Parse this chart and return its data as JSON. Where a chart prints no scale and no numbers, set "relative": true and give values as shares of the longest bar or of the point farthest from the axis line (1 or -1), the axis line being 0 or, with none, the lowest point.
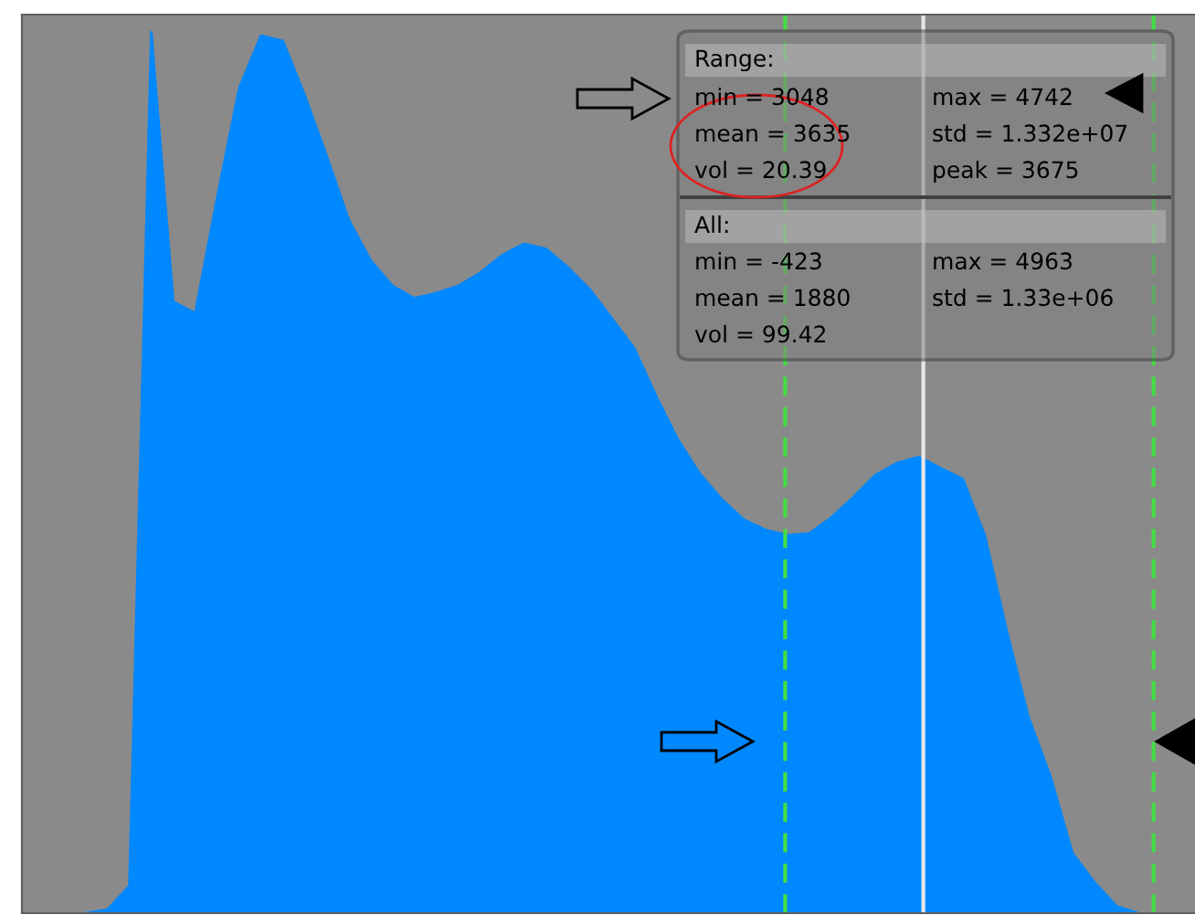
{
  "chart_data": {
    "type": "area",
    "relative": true,
    "tick_labels": false,
    "categories": [
      null,
      null,
      null,
      null,
      null,
      null,
      null,
      null,
      null,
      null,
      null,
      null,
      null,
      null,
      null,
      null,
      null,
      null,
      null,
      null,
      null,
      null,
      null,
      null,
      null,
      null,
      null,
      null,
      null,
      null,
      null,
      null,
      null,
      null,
      null,
      null,
      null,
      null,
      null,
      null,
      null,
      null,
      null,
      null,
      null,
      null,
      null,
      null,
      null
    ],
    "series": [
      {
        "color": "#0088ff",
        "values": [
          0,
          0.004,
          0.031,
          1,
          0.694,
          0.681,
          0.812,
          0.936,
          0.996,
          0.99,
          0.928,
          0.859,
          0.787,
          0.741,
          0.712,
          0.698,
          0.704,
          0.712,
          0.727,
          0.747,
          0.76,
          0.754,
          0.733,
          0.708,
          0.675,
          0.642,
          0.588,
          0.538,
          0.499,
          0.47,
          0.447,
          0.435,
          0.429,
          0.431,
          0.449,
          0.472,
          0.497,
          0.511,
          0.518,
          0.505,
          0.493,
          0.429,
          0.321,
          0.222,
          0.155,
          0.068,
          0.035,
          0.008,
          0
        ]
      }
    ],
    "annotations": [
      "Range:",
      "min = 3048",
      "max = 4742",
      "mean = 3635",
      "std = 1.332e+07",
      "vol = 20.39",
      "peak = 3675",
      "All:",
      "min = -423",
      "max = 4963",
      "mean = 1880",
      "std = 1.33e+06",
      "vol = 99.42"
    ]
  }
}
